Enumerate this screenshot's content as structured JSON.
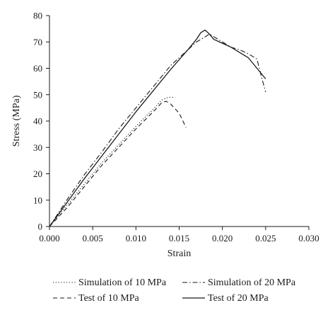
{
  "chart_data": {
    "type": "line",
    "xlabel": "Strain",
    "ylabel": "Stress (MPa)",
    "xlim": [
      0,
      0.03
    ],
    "ylim": [
      0,
      80
    ],
    "x_ticks": [
      "0.000",
      "0.005",
      "0.010",
      "0.015",
      "0.020",
      "0.025",
      "0.030"
    ],
    "y_ticks": [
      "0",
      "10",
      "20",
      "30",
      "40",
      "50",
      "60",
      "70",
      "80"
    ],
    "grid": false,
    "legend_position": "bottom",
    "series": [
      {
        "name": "Simulation of 10 MPa",
        "style": "dotted",
        "x": [
          0,
          0.002,
          0.004,
          0.006,
          0.008,
          0.01,
          0.012,
          0.013,
          0.0137,
          0.0145
        ],
        "y": [
          0,
          8,
          16,
          24,
          31,
          38,
          44.5,
          48,
          49,
          49
        ]
      },
      {
        "name": "Simulation of 20 MPa",
        "style": "dashdot",
        "x": [
          0,
          0.002,
          0.004,
          0.006,
          0.008,
          0.01,
          0.012,
          0.014,
          0.016,
          0.017,
          0.0178,
          0.0185,
          0.019,
          0.02,
          0.021,
          0.022,
          0.023,
          0.024,
          0.0245,
          0.025
        ],
        "y": [
          0,
          10,
          19.5,
          28,
          37,
          45,
          53,
          61,
          67,
          70,
          71.5,
          73,
          72,
          70,
          68,
          67,
          65.5,
          63.5,
          57,
          51
        ]
      },
      {
        "name": "Test of 10 MPa",
        "style": "dashed",
        "x": [
          0,
          0.002,
          0.004,
          0.006,
          0.008,
          0.01,
          0.012,
          0.013,
          0.0135,
          0.014,
          0.015,
          0.0158
        ],
        "y": [
          0,
          7,
          15,
          23,
          30,
          37,
          43.5,
          47,
          47.5,
          46.5,
          43,
          37.5
        ]
      },
      {
        "name": "Test of 20 MPa",
        "style": "solid",
        "x": [
          0,
          0.002,
          0.004,
          0.006,
          0.008,
          0.01,
          0.012,
          0.014,
          0.016,
          0.017,
          0.0175,
          0.018,
          0.0185,
          0.019,
          0.02,
          0.021,
          0.022,
          0.023,
          0.024,
          0.025
        ],
        "y": [
          0,
          9,
          18,
          26.5,
          35,
          43.5,
          51.5,
          59.5,
          67,
          71,
          73.5,
          74.5,
          73,
          71,
          69.5,
          68,
          66,
          64,
          60,
          56
        ]
      }
    ]
  },
  "colors": {
    "line": "#1a1a1a",
    "axis": "#1a1a1a"
  }
}
